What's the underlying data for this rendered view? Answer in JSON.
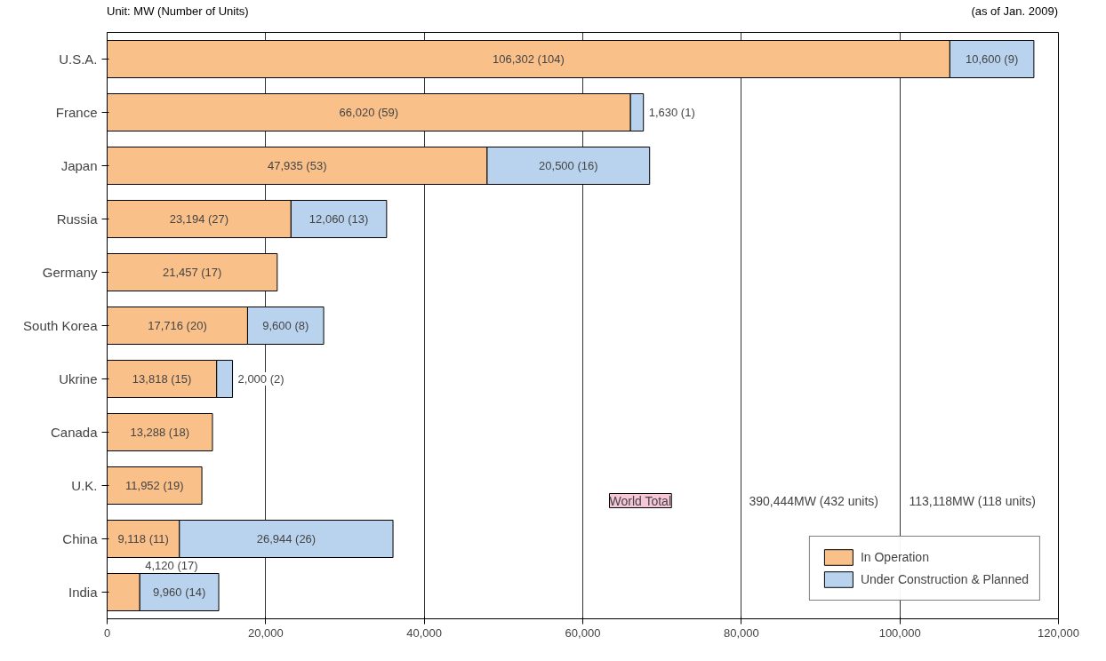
{
  "chart_data": {
    "type": "bar",
    "orientation": "horizontal",
    "stacked": true,
    "categories": [
      "U.S.A.",
      "France",
      "Japan",
      "Russia",
      "Germany",
      "South Korea",
      "Ukrine",
      "Canada",
      "U.K.",
      "China",
      "India"
    ],
    "series": [
      {
        "name": "In Operation",
        "color": "#f9c08a",
        "values": [
          106302,
          66020,
          47935,
          23194,
          21457,
          17716,
          13818,
          13288,
          11952,
          9118,
          4120
        ],
        "value_labels": [
          "106,302 (104)",
          "66,020 (59)",
          "47,935 (53)",
          "23,194 (27)",
          "21,457 (17)",
          "17,716 (20)",
          "13,818 (15)",
          "13,288 (18)",
          "11,952 (19)",
          "9,118 (11)",
          "4,120 (17)"
        ]
      },
      {
        "name": "Under Construction & Planned",
        "color": "#b9d3ee",
        "values": [
          10600,
          1630,
          20500,
          12060,
          null,
          9600,
          2000,
          null,
          null,
          26944,
          9960
        ],
        "value_labels": [
          "10,600 (9)",
          "1,630 (1)",
          "20,500 (16)",
          "12,060 (13)",
          null,
          "9,600 (8)",
          "2,000 (2)",
          null,
          null,
          "26,944 (26)",
          "9,960 (14)"
        ]
      }
    ],
    "xlim": [
      0,
      120000
    ],
    "xticks": [
      0,
      {
        "value": 20000,
        "label": "20,000"
      },
      {
        "value": 40000,
        "label": "40,000"
      },
      {
        "value": 60000,
        "label": "60,000"
      },
      {
        "value": 80000,
        "label": "80,000"
      },
      {
        "value": 100000,
        "label": "100,000"
      },
      {
        "value": 120000,
        "label": "120,000"
      }
    ],
    "grid": "x",
    "legend": "bottom right",
    "annotations": [
      "Unit: MW (Number of Units)",
      "(as of Jan. 2009)",
      "World Total",
      "390,444MW (432 units)",
      "113,118MW (118 units)"
    ]
  }
}
